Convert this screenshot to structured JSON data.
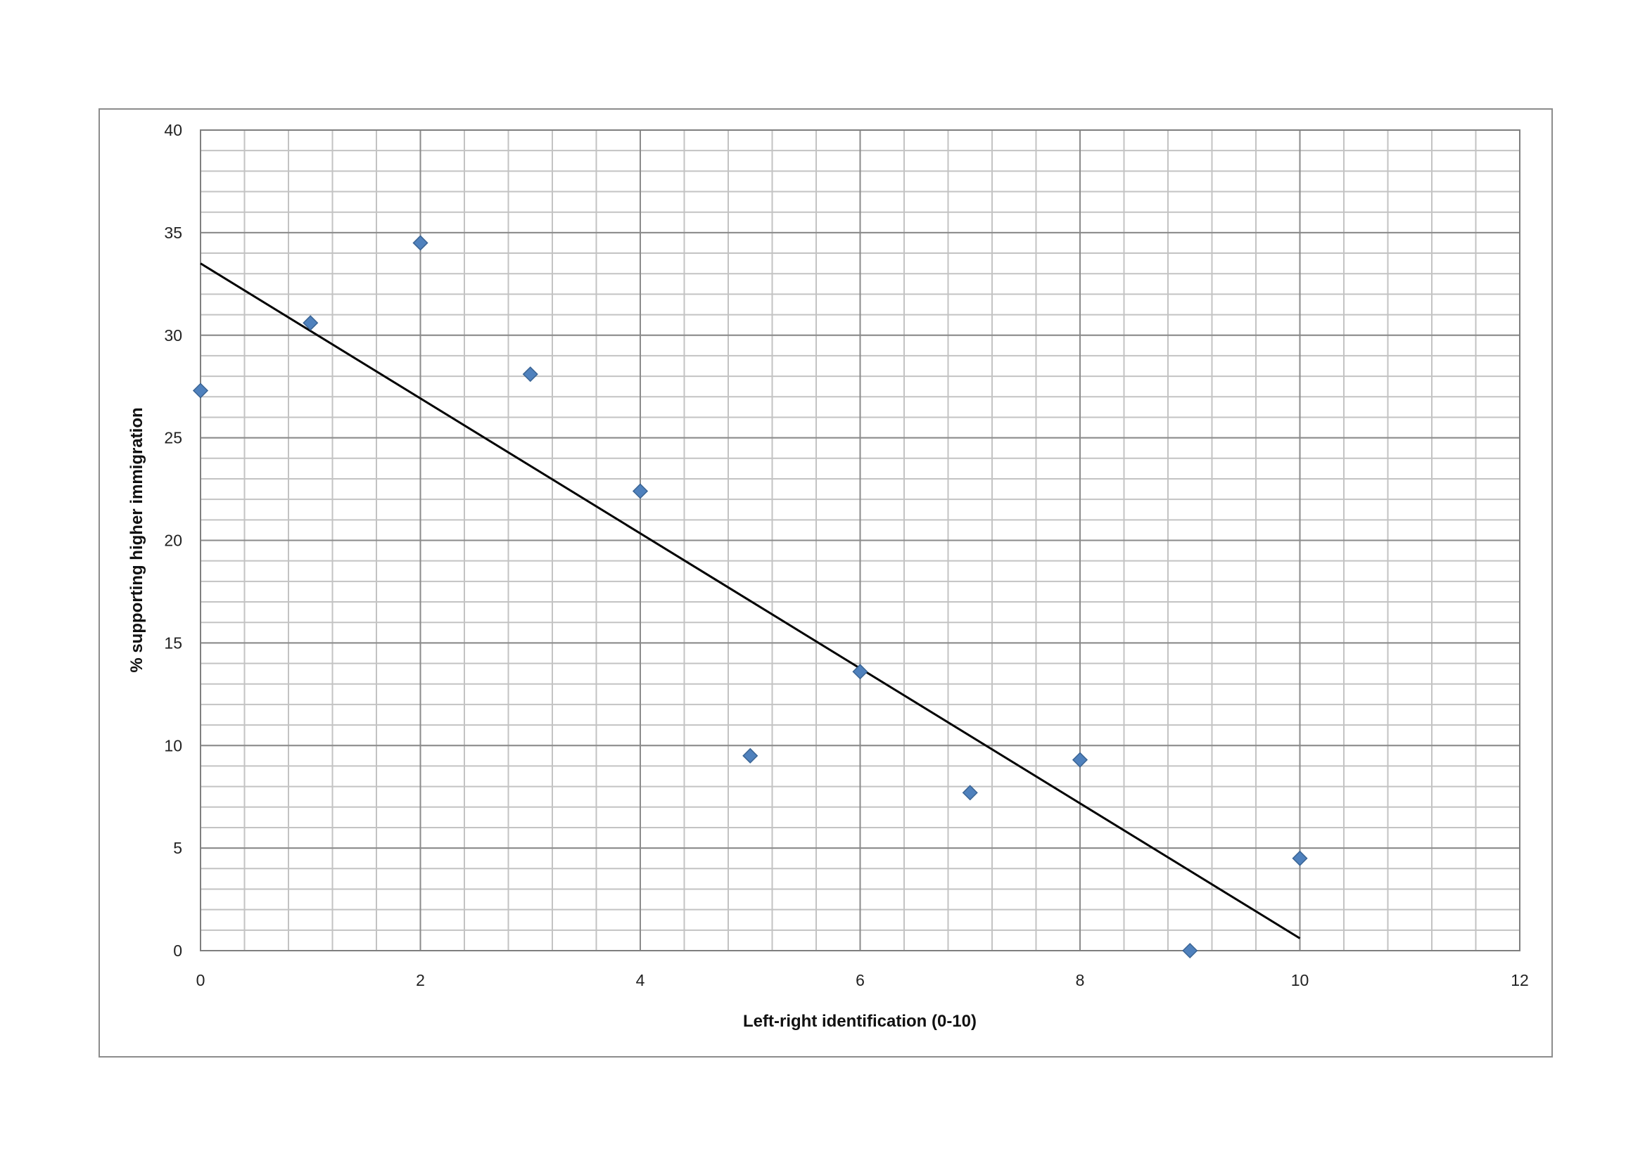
{
  "chart_data": {
    "type": "scatter",
    "title": "",
    "xlabel": "Left-right identification (0-10)",
    "ylabel": "% supporting higher immigration",
    "xlim": [
      0,
      12
    ],
    "ylim": [
      0,
      40
    ],
    "x_ticks": [
      0,
      2,
      4,
      6,
      8,
      10,
      12
    ],
    "y_ticks": [
      0,
      5,
      10,
      15,
      20,
      25,
      30,
      35,
      40
    ],
    "x_minor_step": 0.4,
    "y_minor_step": 1,
    "grid": true,
    "legend": "none",
    "series": [
      {
        "x": [
          0,
          1,
          2,
          3,
          4,
          5,
          6,
          7,
          8,
          9,
          10
        ],
        "y": [
          27.3,
          30.6,
          34.5,
          28.1,
          22.4,
          9.5,
          13.6,
          7.7,
          9.3,
          0,
          4.5
        ],
        "marker": "diamond",
        "color": "#4F81BD"
      }
    ],
    "trendline": {
      "type": "linear",
      "x": [
        0,
        10
      ],
      "y": [
        33.5,
        0.6
      ],
      "color": "#000000"
    }
  }
}
